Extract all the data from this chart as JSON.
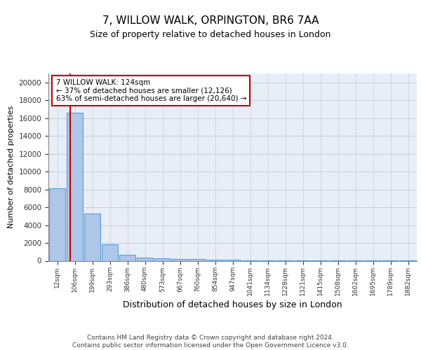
{
  "title": "7, WILLOW WALK, ORPINGTON, BR6 7AA",
  "subtitle": "Size of property relative to detached houses in London",
  "xlabel": "Distribution of detached houses by size in London",
  "ylabel": "Number of detached properties",
  "bar_values": [
    8100,
    16600,
    5300,
    1850,
    650,
    350,
    280,
    200,
    200,
    120,
    80,
    60,
    50,
    40,
    30,
    25,
    20,
    15,
    12,
    10,
    8
  ],
  "bar_labels": [
    "12sqm",
    "106sqm",
    "199sqm",
    "293sqm",
    "386sqm",
    "480sqm",
    "573sqm",
    "667sqm",
    "760sqm",
    "854sqm",
    "947sqm",
    "1041sqm",
    "1134sqm",
    "1228sqm",
    "1321sqm",
    "1415sqm",
    "1508sqm",
    "1602sqm",
    "1695sqm",
    "1789sqm",
    "1882sqm"
  ],
  "bar_color": "#aec6e8",
  "bar_edgecolor": "#5a9fd4",
  "bar_linewidth": 0.8,
  "vline_color": "#cc0000",
  "annotation_text": "7 WILLOW WALK: 124sqm\n← 37% of detached houses are smaller (12,126)\n63% of semi-detached houses are larger (20,640) →",
  "annotation_fontsize": 7.5,
  "annotation_box_color": "#ffffff",
  "annotation_box_edgecolor": "#cc0000",
  "ylim": [
    0,
    21000
  ],
  "yticks": [
    0,
    2000,
    4000,
    6000,
    8000,
    10000,
    12000,
    14000,
    16000,
    18000,
    20000
  ],
  "grid_color": "#cccccc",
  "background_color": "#e8eef8",
  "footer_text": "Contains HM Land Registry data © Crown copyright and database right 2024.\nContains public sector information licensed under the Open Government Licence v3.0.",
  "title_fontsize": 11,
  "subtitle_fontsize": 9
}
